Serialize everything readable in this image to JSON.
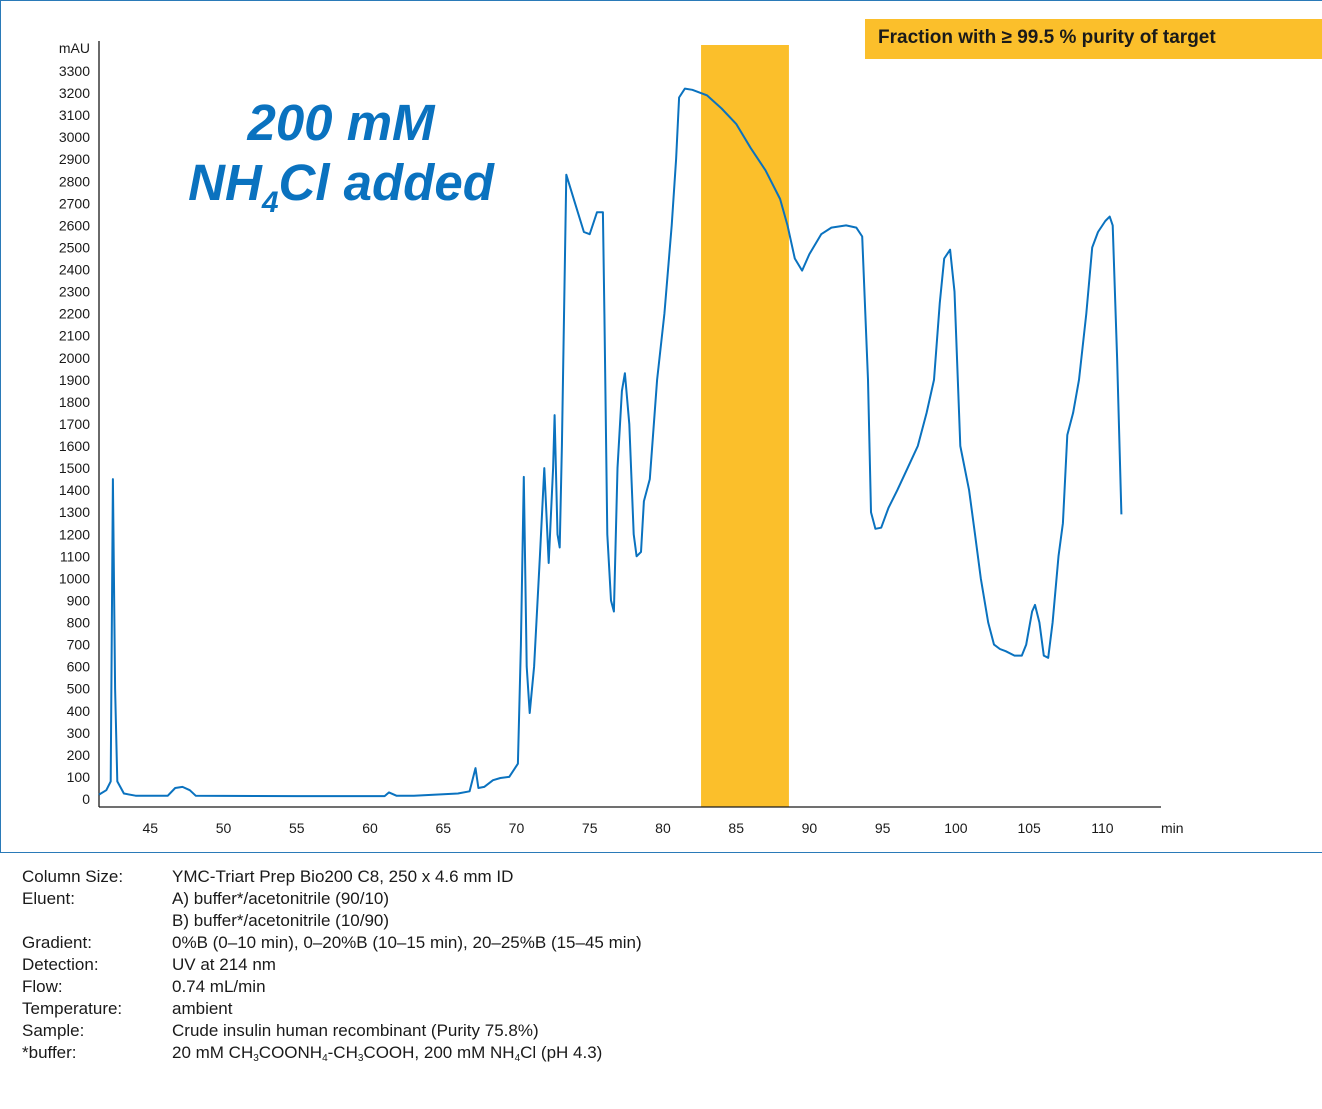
{
  "chart_data": {
    "type": "line",
    "ylabel": "mAU",
    "xlabel": "min",
    "xlim": [
      41.5,
      114
    ],
    "ylim": [
      0,
      3300
    ],
    "x_ticks": [
      45,
      50,
      55,
      60,
      65,
      70,
      75,
      80,
      85,
      90,
      95,
      100,
      105,
      110
    ],
    "y_ticks": [
      0,
      100,
      200,
      300,
      400,
      500,
      600,
      700,
      800,
      900,
      1000,
      1100,
      1200,
      1300,
      1400,
      1500,
      1600,
      1700,
      1800,
      1900,
      2000,
      2100,
      2200,
      2300,
      2400,
      2500,
      2600,
      2700,
      2800,
      2900,
      3000,
      3100,
      3200,
      3300
    ],
    "highlight": {
      "x_range": [
        82.6,
        88.6
      ],
      "label": "Fraction with ≥ 99.5 % purity of target"
    },
    "annotation": "200 mM NH4Cl added",
    "series": [
      {
        "color": "#0a72bf",
        "points": [
          [
            41.5,
            20
          ],
          [
            42.0,
            40
          ],
          [
            42.3,
            80
          ],
          [
            42.45,
            1450
          ],
          [
            42.6,
            500
          ],
          [
            42.75,
            80
          ],
          [
            43.2,
            25
          ],
          [
            44.0,
            15
          ],
          [
            45.0,
            15
          ],
          [
            46.2,
            15
          ],
          [
            46.7,
            50
          ],
          [
            47.2,
            55
          ],
          [
            47.7,
            40
          ],
          [
            48.1,
            15
          ],
          [
            50.0,
            14
          ],
          [
            55.0,
            13
          ],
          [
            61.0,
            13
          ],
          [
            61.3,
            30
          ],
          [
            61.8,
            15
          ],
          [
            63.0,
            15
          ],
          [
            66.0,
            25
          ],
          [
            66.8,
            35
          ],
          [
            67.2,
            140
          ],
          [
            67.4,
            50
          ],
          [
            67.8,
            55
          ],
          [
            68.4,
            85
          ],
          [
            68.9,
            95
          ],
          [
            69.5,
            100
          ],
          [
            70.1,
            160
          ],
          [
            70.3,
            700
          ],
          [
            70.5,
            1460
          ],
          [
            70.7,
            600
          ],
          [
            70.9,
            390
          ],
          [
            71.2,
            600
          ],
          [
            71.6,
            1100
          ],
          [
            71.9,
            1500
          ],
          [
            72.2,
            1070
          ],
          [
            72.5,
            1500
          ],
          [
            72.6,
            1740
          ],
          [
            72.8,
            1200
          ],
          [
            72.95,
            1140
          ],
          [
            73.1,
            1600
          ],
          [
            73.4,
            2830
          ],
          [
            74.0,
            2700
          ],
          [
            74.6,
            2570
          ],
          [
            75.0,
            2560
          ],
          [
            75.5,
            2660
          ],
          [
            75.9,
            2660
          ],
          [
            76.0,
            2200
          ],
          [
            76.2,
            1200
          ],
          [
            76.45,
            900
          ],
          [
            76.65,
            850
          ],
          [
            76.9,
            1500
          ],
          [
            77.2,
            1850
          ],
          [
            77.4,
            1930
          ],
          [
            77.7,
            1700
          ],
          [
            78.0,
            1200
          ],
          [
            78.2,
            1100
          ],
          [
            78.5,
            1120
          ],
          [
            78.7,
            1350
          ],
          [
            79.1,
            1450
          ],
          [
            79.6,
            1900
          ],
          [
            80.1,
            2200
          ],
          [
            80.6,
            2600
          ],
          [
            80.9,
            2900
          ],
          [
            81.1,
            3180
          ],
          [
            81.5,
            3220
          ],
          [
            82.0,
            3215
          ],
          [
            83.0,
            3190
          ],
          [
            84.0,
            3130
          ],
          [
            85.0,
            3060
          ],
          [
            86.0,
            2950
          ],
          [
            87.0,
            2850
          ],
          [
            88.0,
            2720
          ],
          [
            88.5,
            2600
          ],
          [
            89.0,
            2450
          ],
          [
            89.5,
            2395
          ],
          [
            90.0,
            2470
          ],
          [
            90.8,
            2560
          ],
          [
            91.5,
            2590
          ],
          [
            92.5,
            2600
          ],
          [
            93.2,
            2590
          ],
          [
            93.6,
            2550
          ],
          [
            94.0,
            1900
          ],
          [
            94.2,
            1300
          ],
          [
            94.5,
            1225
          ],
          [
            94.9,
            1230
          ],
          [
            95.4,
            1320
          ],
          [
            96.0,
            1400
          ],
          [
            96.7,
            1500
          ],
          [
            97.4,
            1600
          ],
          [
            98.0,
            1750
          ],
          [
            98.5,
            1900
          ],
          [
            98.9,
            2250
          ],
          [
            99.2,
            2450
          ],
          [
            99.6,
            2490
          ],
          [
            99.9,
            2300
          ],
          [
            100.3,
            1600
          ],
          [
            100.9,
            1400
          ],
          [
            101.3,
            1200
          ],
          [
            101.7,
            1000
          ],
          [
            102.2,
            800
          ],
          [
            102.6,
            700
          ],
          [
            103.0,
            680
          ],
          [
            103.4,
            670
          ],
          [
            104.0,
            650
          ],
          [
            104.5,
            650
          ],
          [
            104.8,
            700
          ],
          [
            105.2,
            850
          ],
          [
            105.4,
            880
          ],
          [
            105.7,
            800
          ],
          [
            106.0,
            650
          ],
          [
            106.3,
            640
          ],
          [
            106.6,
            800
          ],
          [
            107.0,
            1100
          ],
          [
            107.3,
            1250
          ],
          [
            107.6,
            1650
          ],
          [
            108.0,
            1750
          ],
          [
            108.4,
            1900
          ],
          [
            108.9,
            2200
          ],
          [
            109.3,
            2500
          ],
          [
            109.7,
            2570
          ],
          [
            110.2,
            2620
          ],
          [
            110.5,
            2640
          ],
          [
            110.7,
            2600
          ],
          [
            111.0,
            2000
          ],
          [
            111.3,
            1290
          ]
        ]
      }
    ]
  },
  "info": {
    "rows": [
      {
        "label": "Column Size:",
        "value": "YMC-Triart Prep Bio200 C8, 250 x 4.6 mm ID"
      },
      {
        "label": "Eluent:",
        "value": "A) buffer*/acetonitrile (90/10)"
      },
      {
        "label": "",
        "value": "B) buffer*/acetonitrile (10/90)"
      },
      {
        "label": "Gradient:",
        "value": "0%B (0–10 min), 0–20%B (10–15 min), 20–25%B (15–45 min)"
      },
      {
        "label": "Detection:",
        "value": "UV at 214 nm"
      },
      {
        "label": "Flow:",
        "value": "0.74 mL/min"
      },
      {
        "label": "Temperature:",
        "value": "ambient"
      },
      {
        "label": "Sample:",
        "value": "Crude insulin human recombinant (Purity 75.8%)"
      }
    ],
    "buffer_label": "*buffer:",
    "buffer_parts": [
      "20 mM CH",
      "3",
      "COONH",
      "4",
      "-CH",
      "3",
      "COOH, 200 mM NH",
      "4",
      "Cl (pH 4.3)"
    ]
  },
  "colors": {
    "trace": "#0a72bf",
    "highlight": "#fbbf2b",
    "frame": "#2a7ab8"
  }
}
